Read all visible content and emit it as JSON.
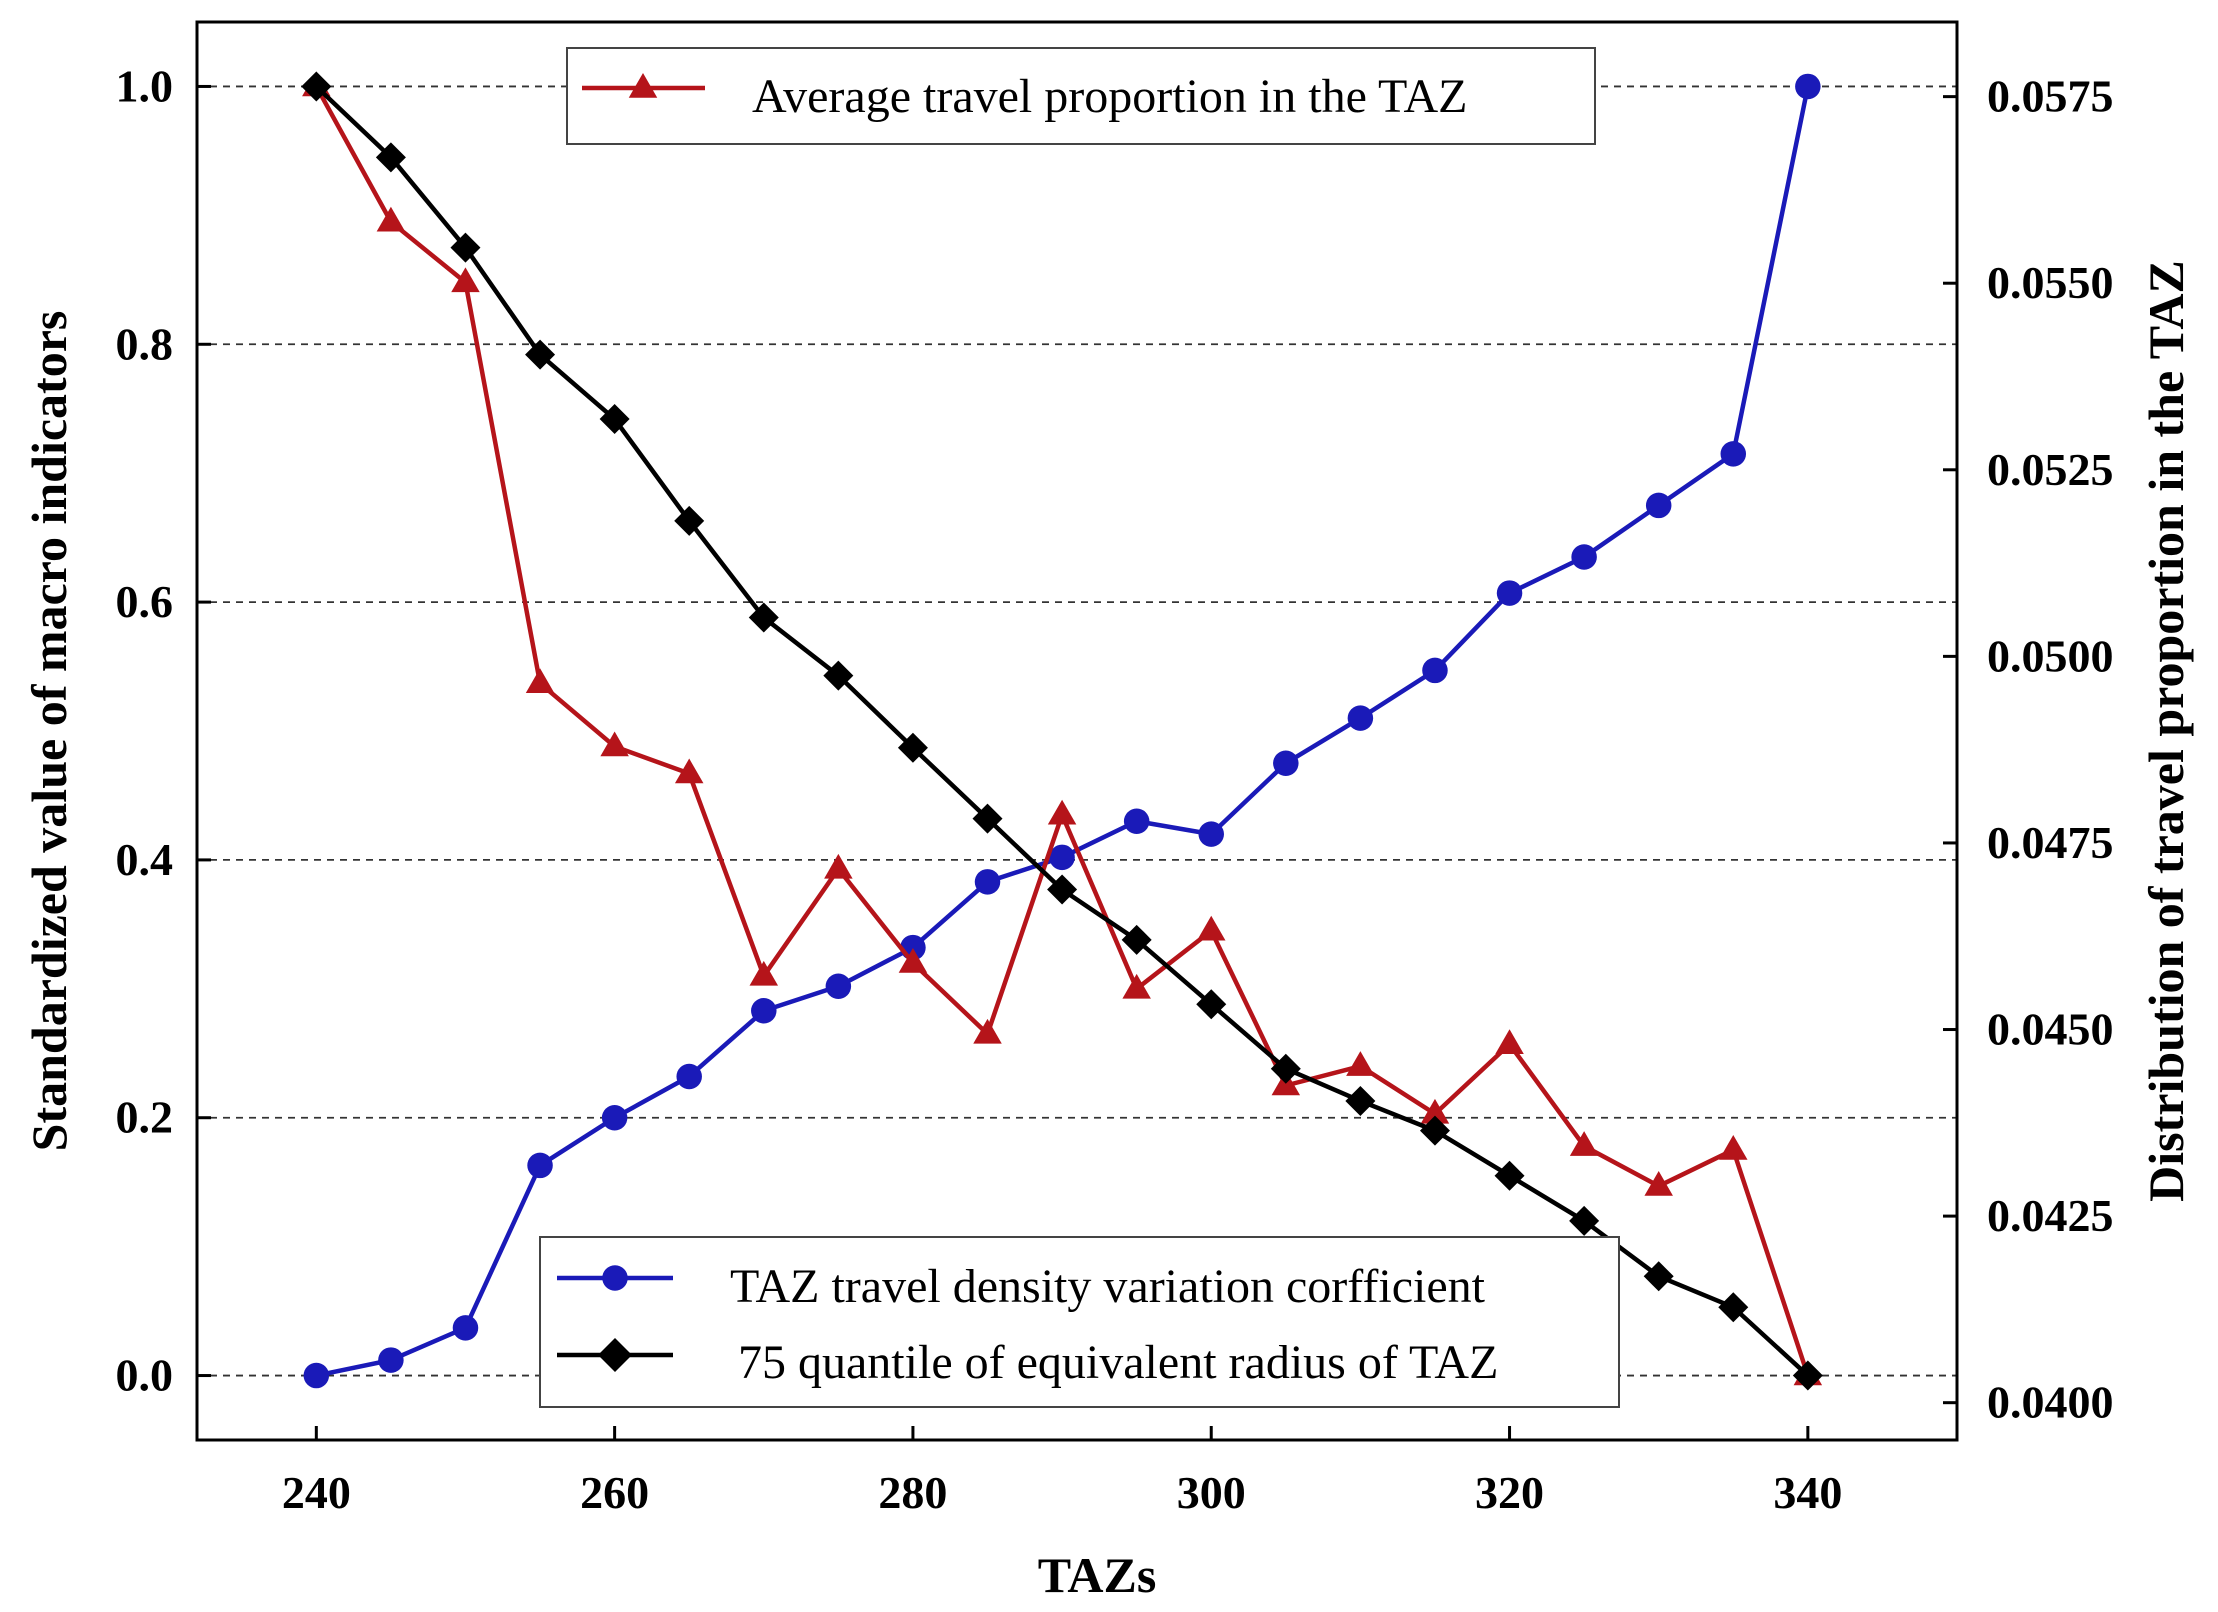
{
  "chart_data": {
    "type": "line",
    "title": "",
    "xlabel": "TAZs",
    "ylabel": "Standardized value of macro indicators",
    "y2label": "Distribution of travel proportion in the TAZ",
    "xlim": [
      232,
      350
    ],
    "ylim": [
      -0.05,
      1.05
    ],
    "y2lim": [
      0.0395,
      0.0585
    ],
    "xticks": [
      "240",
      "260",
      "280",
      "300",
      "320",
      "340"
    ],
    "yticks": [
      "0.0",
      "0.2",
      "0.4",
      "0.6",
      "0.8",
      "1.0"
    ],
    "y2ticks": [
      "0.0400",
      "0.0425",
      "0.0450",
      "0.0475",
      "0.0500",
      "0.0525",
      "0.0550",
      "0.0575"
    ],
    "grid": "horizontal dashed",
    "x": [
      240,
      245,
      250,
      255,
      260,
      265,
      270,
      275,
      280,
      285,
      290,
      295,
      300,
      305,
      310,
      315,
      320,
      325,
      330,
      335,
      340
    ],
    "series": [
      {
        "name": "Average travel proportion in the TAZ",
        "color": "#b5141a",
        "marker": "triangle",
        "axis": "left",
        "values": [
          1.0,
          0.895,
          0.848,
          0.537,
          0.488,
          0.467,
          0.31,
          0.393,
          0.32,
          0.265,
          0.435,
          0.3,
          0.345,
          0.225,
          0.24,
          0.203,
          0.257,
          0.178,
          0.147,
          0.175,
          0.0
        ]
      },
      {
        "name": "TAZ travel density variation corfficient",
        "color": "#1a1ab8",
        "marker": "circle",
        "axis": "left",
        "values": [
          0.0,
          0.012,
          0.037,
          0.163,
          0.2,
          0.232,
          0.283,
          0.302,
          0.332,
          0.383,
          0.402,
          0.43,
          0.42,
          0.475,
          0.51,
          0.547,
          0.607,
          0.635,
          0.675,
          0.715,
          1.0
        ]
      },
      {
        "name": "75 quantile of equivalent radius of TAZ",
        "color": "#000000",
        "marker": "diamond",
        "axis": "left",
        "values": [
          1.0,
          0.945,
          0.875,
          0.792,
          0.742,
          0.663,
          0.588,
          0.543,
          0.487,
          0.432,
          0.377,
          0.338,
          0.288,
          0.238,
          0.213,
          0.19,
          0.155,
          0.12,
          0.077,
          0.053,
          0.0
        ]
      }
    ],
    "legends": [
      {
        "placement": "top-center",
        "entries": [
          "Average travel proportion in the TAZ"
        ]
      },
      {
        "placement": "bottom-center",
        "entries": [
          "TAZ travel density variation corfficient",
          "75 quantile of equivalent radius of TAZ"
        ]
      }
    ]
  }
}
